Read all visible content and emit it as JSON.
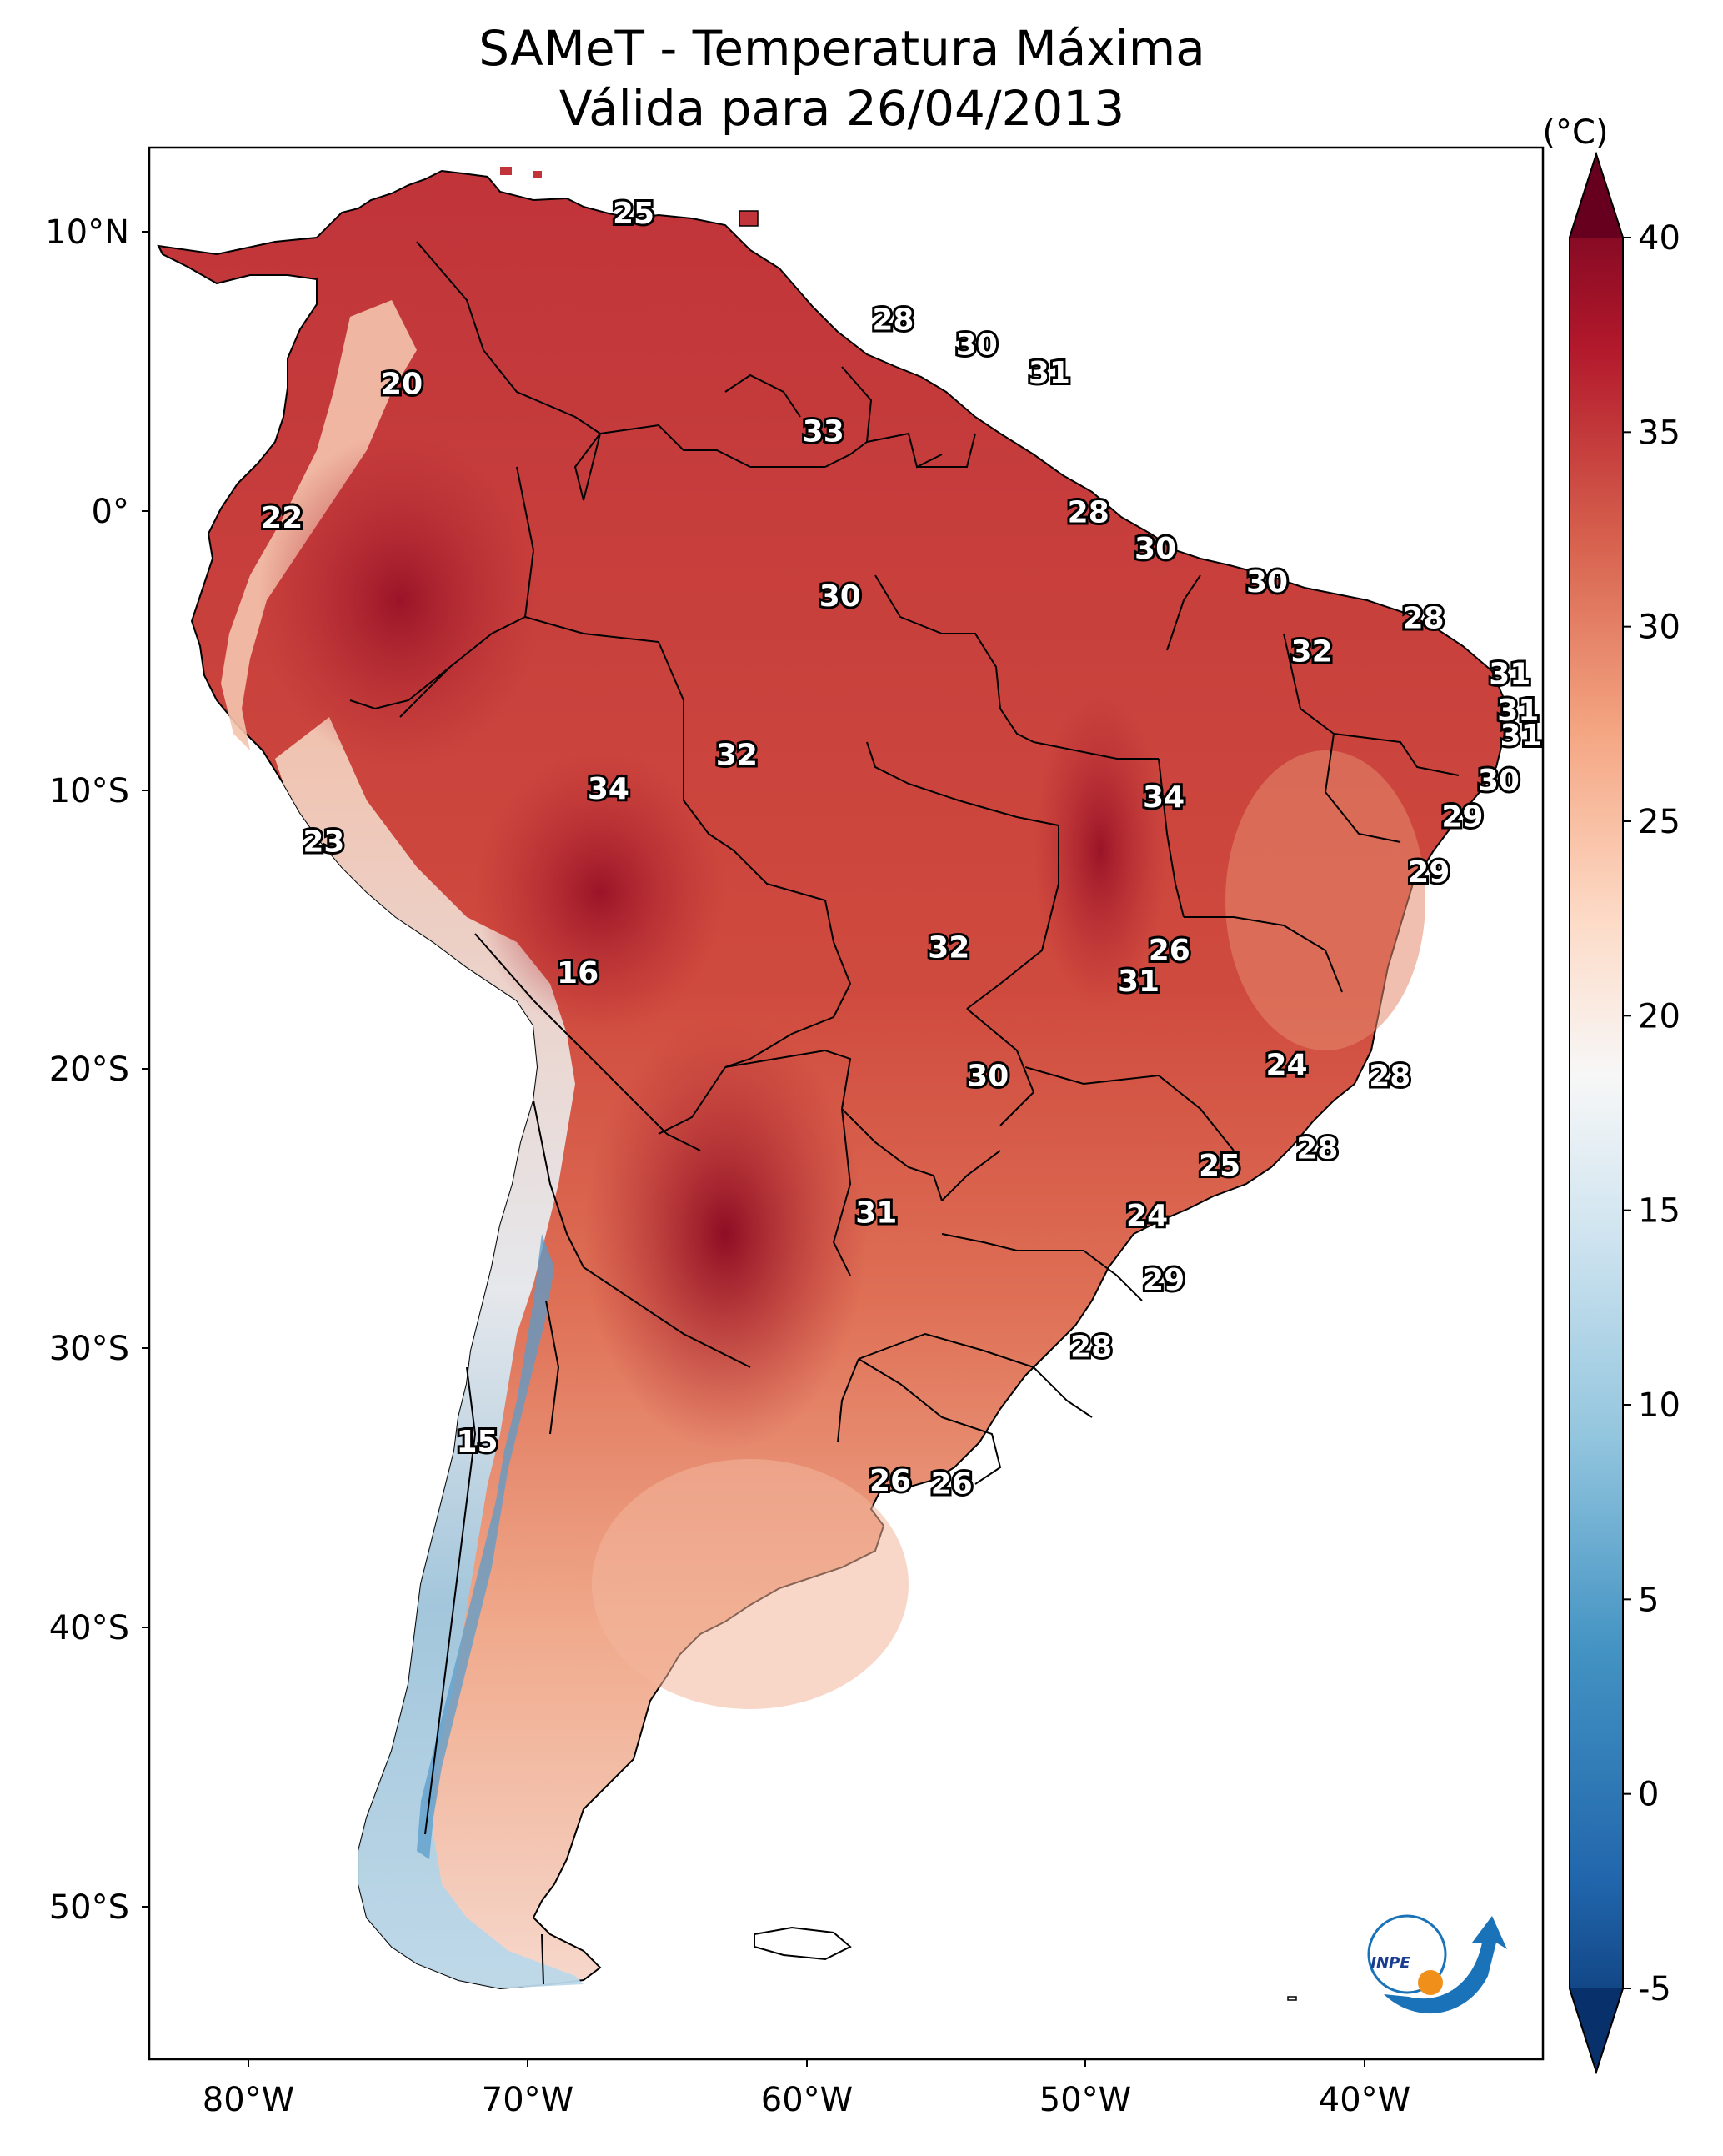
{
  "title": {
    "line1": "SAMeT - Temperatura Máxima",
    "line2": "Válida para 26/04/2013"
  },
  "axes": {
    "lat_labels": [
      "10°N",
      "0°",
      "10°S",
      "20°S",
      "30°S",
      "40°S",
      "50°S"
    ],
    "lon_labels": [
      "80°W",
      "70°W",
      "60°W",
      "50°W",
      "40°W"
    ]
  },
  "colorbar": {
    "unit": "(°C)",
    "tick_labels": [
      "-5",
      "0",
      "5",
      "10",
      "15",
      "20",
      "25",
      "30",
      "35",
      "40"
    ],
    "range": [
      -5,
      40
    ],
    "extend": "both",
    "colormap": "RdBu_r",
    "colors": [
      "#08306b",
      "#2166ac",
      "#4393c3",
      "#92c5de",
      "#d1e5f0",
      "#f7f7f7",
      "#fddbc7",
      "#f4a582",
      "#d6604d",
      "#b2182b",
      "#67001f"
    ]
  },
  "temperature_labels": [
    {
      "text": "25",
      "lon": -66.2,
      "lat": 10.6
    },
    {
      "text": "28",
      "lon": -56.9,
      "lat": 6.8
    },
    {
      "text": "30",
      "lon": -53.9,
      "lat": 5.9
    },
    {
      "text": "31",
      "lon": -51.3,
      "lat": 4.9
    },
    {
      "text": "20",
      "lon": -74.5,
      "lat": 4.5
    },
    {
      "text": "33",
      "lon": -59.4,
      "lat": 2.8
    },
    {
      "text": "22",
      "lon": -78.8,
      "lat": -0.3
    },
    {
      "text": "28",
      "lon": -49.9,
      "lat": -0.1
    },
    {
      "text": "30",
      "lon": -47.5,
      "lat": -1.4
    },
    {
      "text": "30",
      "lon": -58.8,
      "lat": -3.1
    },
    {
      "text": "30",
      "lon": -43.5,
      "lat": -2.6
    },
    {
      "text": "28",
      "lon": -37.9,
      "lat": -3.9
    },
    {
      "text": "32",
      "lon": -41.9,
      "lat": -5.1
    },
    {
      "text": "31",
      "lon": -34.8,
      "lat": -5.9
    },
    {
      "text": "31",
      "lon": -34.5,
      "lat": -7.2
    },
    {
      "text": "31",
      "lon": -34.4,
      "lat": -8.1
    },
    {
      "text": "32",
      "lon": -62.5,
      "lat": -8.8
    },
    {
      "text": "34",
      "lon": -67.1,
      "lat": -10.0
    },
    {
      "text": "34",
      "lon": -47.2,
      "lat": -10.3
    },
    {
      "text": "30",
      "lon": -35.2,
      "lat": -9.7
    },
    {
      "text": "29",
      "lon": -36.5,
      "lat": -11.0
    },
    {
      "text": "23",
      "lon": -77.3,
      "lat": -11.9
    },
    {
      "text": "29",
      "lon": -37.7,
      "lat": -13.0
    },
    {
      "text": "16",
      "lon": -68.2,
      "lat": -16.6
    },
    {
      "text": "32",
      "lon": -54.9,
      "lat": -15.7
    },
    {
      "text": "26",
      "lon": -47.0,
      "lat": -15.8
    },
    {
      "text": "31",
      "lon": -48.1,
      "lat": -16.9
    },
    {
      "text": "30",
      "lon": -53.5,
      "lat": -20.3
    },
    {
      "text": "24",
      "lon": -42.8,
      "lat": -19.9
    },
    {
      "text": "28",
      "lon": -39.1,
      "lat": -20.3
    },
    {
      "text": "28",
      "lon": -41.7,
      "lat": -22.9
    },
    {
      "text": "25",
      "lon": -45.2,
      "lat": -23.5
    },
    {
      "text": "31",
      "lon": -57.5,
      "lat": -25.2
    },
    {
      "text": "24",
      "lon": -47.8,
      "lat": -25.3
    },
    {
      "text": "29",
      "lon": -47.2,
      "lat": -27.6
    },
    {
      "text": "28",
      "lon": -49.8,
      "lat": -30.0
    },
    {
      "text": "15",
      "lon": -71.8,
      "lat": -33.4
    },
    {
      "text": "26",
      "lon": -57.0,
      "lat": -34.8
    },
    {
      "text": "26",
      "lon": -54.8,
      "lat": -34.9
    }
  ],
  "logo": {
    "text": "INPE"
  }
}
